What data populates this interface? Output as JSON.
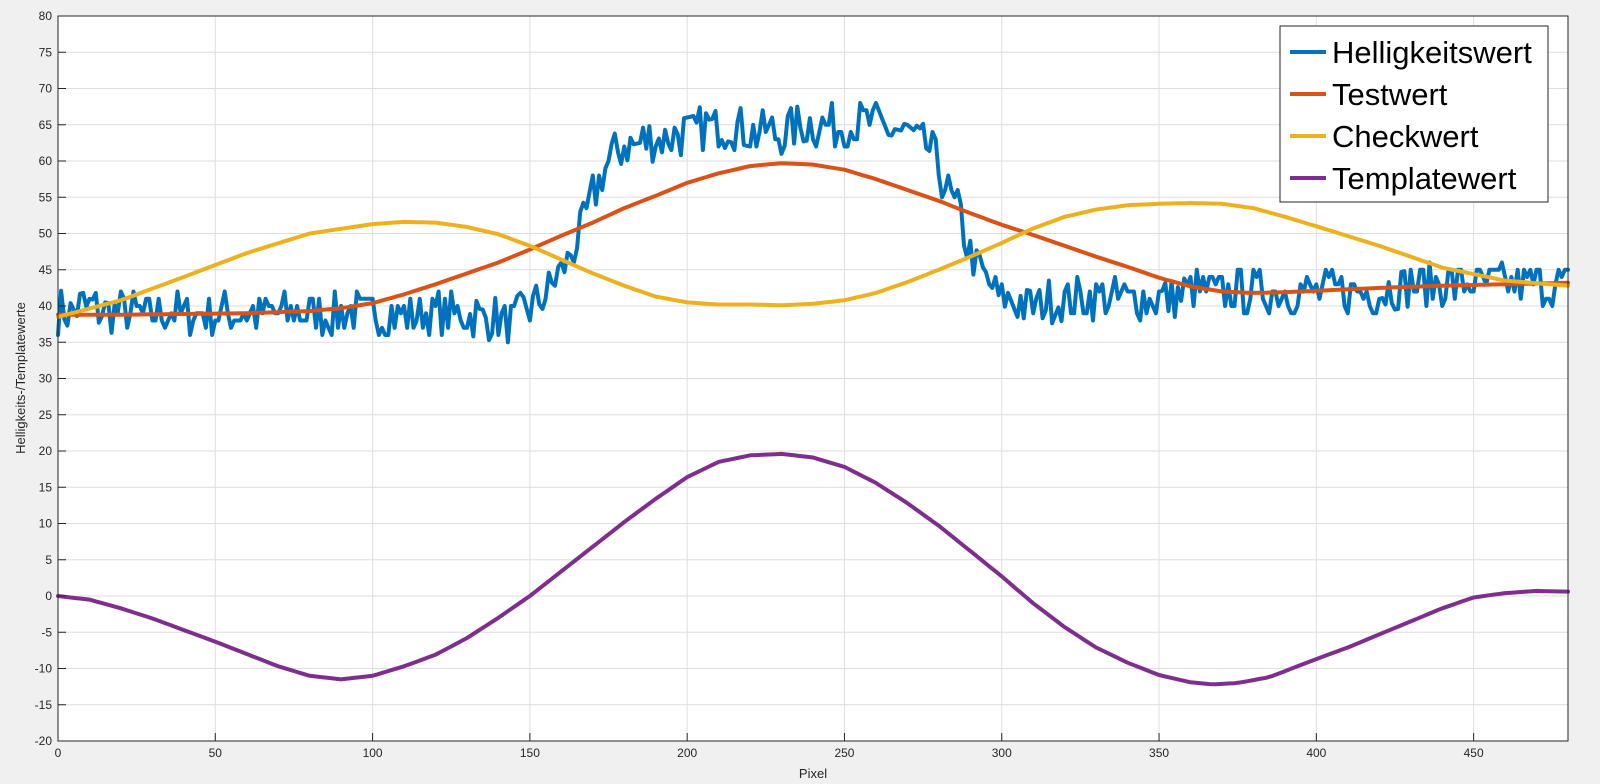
{
  "chart_data": {
    "type": "line",
    "xlabel": "Pixel",
    "ylabel": "Helligkeits-/Templatewerte",
    "xlim": [
      0,
      480
    ],
    "ylim": [
      -20,
      80
    ],
    "xticks": [
      0,
      50,
      100,
      150,
      200,
      250,
      300,
      350,
      400,
      450
    ],
    "yticks": [
      -20,
      -15,
      -10,
      -5,
      0,
      5,
      10,
      15,
      20,
      25,
      30,
      35,
      40,
      45,
      50,
      55,
      60,
      65,
      70,
      75,
      80
    ],
    "grid": true,
    "legend_position": "top-right",
    "series": [
      {
        "name": "Helligkeitswert",
        "color": "#0072bd",
        "noisy": true,
        "x": [
          0,
          10,
          20,
          30,
          40,
          50,
          60,
          70,
          80,
          90,
          100,
          110,
          120,
          130,
          140,
          145,
          150,
          155,
          160,
          163,
          166,
          170,
          175,
          180,
          190,
          200,
          210,
          220,
          230,
          240,
          250,
          260,
          270,
          278,
          283,
          287,
          290,
          293,
          296,
          300,
          310,
          320,
          330,
          340,
          350,
          360,
          370,
          380,
          390,
          400,
          410,
          420,
          430,
          440,
          450,
          460,
          470,
          480
        ],
        "y": [
          39,
          40,
          39,
          39,
          39,
          39,
          39,
          39,
          39,
          39,
          39,
          39,
          39,
          39,
          38,
          38,
          40,
          42,
          45,
          47,
          50,
          55,
          60,
          62,
          63,
          64,
          65,
          64,
          64,
          65,
          65,
          65,
          64,
          61,
          56,
          52,
          47,
          45,
          43,
          41,
          40,
          41,
          41,
          41,
          41,
          42,
          42,
          42,
          42,
          42,
          42,
          42,
          43,
          43,
          43,
          43,
          43,
          43
        ]
      },
      {
        "name": "Testwert",
        "color": "#d95319",
        "noisy": false,
        "x": [
          0,
          20,
          40,
          60,
          80,
          90,
          100,
          110,
          120,
          130,
          140,
          150,
          160,
          170,
          180,
          190,
          200,
          210,
          220,
          230,
          240,
          250,
          260,
          270,
          280,
          290,
          300,
          310,
          320,
          330,
          340,
          350,
          360,
          370,
          380,
          390,
          400,
          420,
          440,
          460,
          480
        ],
        "y": [
          38.8,
          38.8,
          38.9,
          39.0,
          39.3,
          39.7,
          40.4,
          41.6,
          43.0,
          44.5,
          46.0,
          47.8,
          49.7,
          51.5,
          53.5,
          55.2,
          57.0,
          58.3,
          59.3,
          59.7,
          59.5,
          58.8,
          57.5,
          56.0,
          54.5,
          52.8,
          51.2,
          49.8,
          48.3,
          46.8,
          45.4,
          43.9,
          42.7,
          42.0,
          41.8,
          41.9,
          42.1,
          42.5,
          42.8,
          43.0,
          43.2
        ]
      },
      {
        "name": "Checkwert",
        "color": "#edb120",
        "noisy": false,
        "x": [
          0,
          20,
          40,
          60,
          80,
          100,
          110,
          120,
          130,
          140,
          150,
          160,
          170,
          180,
          190,
          200,
          210,
          220,
          230,
          240,
          250,
          260,
          270,
          280,
          290,
          300,
          310,
          320,
          330,
          340,
          350,
          360,
          370,
          380,
          390,
          400,
          420,
          440,
          460,
          480
        ],
        "y": [
          38.5,
          40.8,
          44.0,
          47.3,
          50.0,
          51.3,
          51.6,
          51.5,
          50.9,
          49.9,
          48.3,
          46.4,
          44.5,
          42.8,
          41.3,
          40.5,
          40.2,
          40.2,
          40.1,
          40.3,
          40.8,
          41.8,
          43.3,
          45.0,
          46.8,
          48.7,
          50.7,
          52.3,
          53.3,
          53.9,
          54.1,
          54.2,
          54.1,
          53.5,
          52.3,
          51.0,
          48.3,
          45.3,
          43.5,
          42.8
        ]
      },
      {
        "name": "Templatewert",
        "color": "#7e2f8e",
        "noisy": false,
        "x": [
          0,
          10,
          20,
          30,
          40,
          50,
          60,
          70,
          80,
          90,
          100,
          110,
          120,
          130,
          140,
          150,
          160,
          170,
          180,
          190,
          200,
          210,
          220,
          230,
          240,
          250,
          260,
          270,
          280,
          290,
          300,
          310,
          320,
          330,
          340,
          350,
          360,
          367,
          375,
          385,
          400,
          410,
          420,
          430,
          440,
          450,
          460,
          470,
          480
        ],
        "y": [
          0,
          -0.5,
          -1.7,
          -3.1,
          -4.7,
          -6.3,
          -8.0,
          -9.7,
          -11.0,
          -11.5,
          -11.0,
          -9.7,
          -8.1,
          -5.8,
          -3.0,
          0.0,
          3.4,
          6.8,
          10.2,
          13.4,
          16.4,
          18.5,
          19.4,
          19.6,
          19.1,
          17.8,
          15.6,
          12.8,
          9.7,
          6.2,
          2.7,
          -1.0,
          -4.3,
          -7.1,
          -9.2,
          -10.9,
          -11.9,
          -12.2,
          -12.0,
          -11.2,
          -8.7,
          -7.1,
          -5.3,
          -3.5,
          -1.7,
          -0.2,
          0.4,
          0.7,
          0.6
        ]
      }
    ]
  }
}
